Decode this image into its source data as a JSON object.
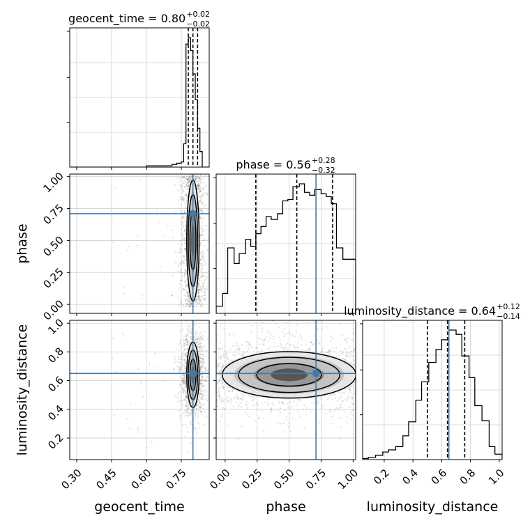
{
  "chart_data": {
    "type": "corner",
    "parameters": [
      "geocent_time",
      "phase",
      "luminosity_distance"
    ],
    "truths": {
      "geocent_time": 0.8,
      "phase": 0.71,
      "luminosity_distance": 0.65
    },
    "summaries": [
      {
        "parameter": "geocent_time",
        "name": "geocent_time",
        "median": "0.80",
        "plus": "+0.02",
        "minus": "−0.02",
        "quantiles": [
          0.78,
          0.8,
          0.82
        ]
      },
      {
        "parameter": "phase",
        "name": "phase",
        "median": "0.56",
        "plus": "+0.28",
        "minus": "−0.32",
        "quantiles": [
          0.24,
          0.56,
          0.84
        ]
      },
      {
        "parameter": "luminosity_distance",
        "name": "luminosity_distance",
        "median": "0.64",
        "plus": "+0.12",
        "minus": "−0.14",
        "quantiles": [
          0.5,
          0.64,
          0.76
        ]
      }
    ],
    "ranges": {
      "geocent_time": [
        0.27,
        0.87
      ],
      "phase": [
        -0.07,
        1.02
      ],
      "luminosity_distance": [
        0.05,
        1.02
      ]
    },
    "ticks": {
      "geocent_time": [
        "0.30",
        "0.45",
        "0.60",
        "0.75"
      ],
      "phase": [
        "0.00",
        "0.25",
        "0.50",
        "0.75",
        "1.00"
      ],
      "luminosity_distance": [
        "0.2",
        "0.4",
        "0.6",
        "0.8",
        "1.0"
      ]
    },
    "axis_labels": {
      "x": [
        "geocent_time",
        "phase",
        "luminosity_distance"
      ],
      "y": [
        "phase",
        "luminosity_distance"
      ]
    },
    "histograms": {
      "geocent_time": {
        "edges": [
          0.27,
          0.6,
          0.64,
          0.67,
          0.69,
          0.71,
          0.72,
          0.73,
          0.74,
          0.75,
          0.76,
          0.77,
          0.78,
          0.79,
          0.8,
          0.81,
          0.82,
          0.83,
          0.84,
          0.85,
          0.86,
          0.87
        ],
        "counts": [
          0,
          1,
          1,
          1,
          1,
          2,
          2,
          3,
          3,
          4,
          18,
          95,
          100,
          90,
          72,
          52,
          30,
          12,
          0,
          0,
          0
        ]
      },
      "phase": {
        "edges": [
          -0.07,
          -0.02,
          0.02,
          0.07,
          0.11,
          0.16,
          0.2,
          0.24,
          0.28,
          0.32,
          0.36,
          0.41,
          0.45,
          0.49,
          0.53,
          0.58,
          0.62,
          0.66,
          0.7,
          0.75,
          0.79,
          0.83,
          0.87,
          0.92,
          0.96,
          1.02
        ],
        "counts": [
          5,
          14,
          46,
          35,
          42,
          52,
          47,
          56,
          61,
          68,
          66,
          70,
          79,
          80,
          89,
          91,
          85,
          83,
          87,
          84,
          82,
          77,
          46,
          38,
          38
        ]
      },
      "luminosity_distance": {
        "edges": [
          0.05,
          0.09,
          0.14,
          0.19,
          0.23,
          0.28,
          0.33,
          0.37,
          0.42,
          0.46,
          0.51,
          0.56,
          0.6,
          0.65,
          0.7,
          0.74,
          0.79,
          0.83,
          0.88,
          0.93,
          0.97,
          1.02
        ],
        "counts": [
          1,
          2,
          4,
          7,
          9,
          12,
          22,
          35,
          55,
          72,
          90,
          102,
          111,
          120,
          116,
          96,
          76,
          50,
          36,
          12,
          5
        ]
      }
    },
    "grid": true
  }
}
